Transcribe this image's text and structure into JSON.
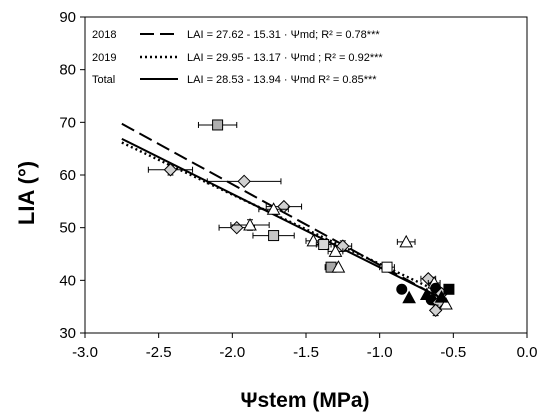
{
  "chart_data": {
    "type": "scatter",
    "title": "",
    "xlabel": "Ψstem (MPa)",
    "ylabel": "LIA (°)",
    "xlim": [
      -3.0,
      0.0
    ],
    "ylim": [
      30,
      90
    ],
    "xticks": [
      "-3.0",
      "-2.5",
      "-2.0",
      "-1.5",
      "-1.0",
      "-0.5",
      "0.0"
    ],
    "yticks": [
      "30",
      "40",
      "50",
      "60",
      "70",
      "80",
      "90"
    ],
    "grid": false,
    "legend_position": "top-left",
    "regressions": [
      {
        "name": "2018",
        "equation": "LAI = 27.62 - 15.31 · Ψmd; R² = 0.78***",
        "intercept": 27.62,
        "slope": -15.31,
        "x_range": [
          -2.75,
          -0.55
        ],
        "style": "dashed"
      },
      {
        "name": "2019",
        "equation": "LAI = 29.95 - 13.17 · Ψmd ; R² = 0.92***",
        "intercept": 29.95,
        "slope": -13.17,
        "x_range": [
          -2.75,
          -0.55
        ],
        "style": "dotted"
      },
      {
        "name": "Total",
        "equation": "LAI = 28.53 - 13.94 · Ψmd  R² = 0.85***",
        "intercept": 28.53,
        "slope": -13.94,
        "x_range": [
          -2.75,
          -0.55
        ],
        "style": "solid"
      }
    ],
    "points": [
      {
        "x": -2.1,
        "y": 69.5,
        "xerr": 0.13,
        "yerr": 0,
        "marker": "square",
        "fill": "#b0b0b0"
      },
      {
        "x": -2.42,
        "y": 61.0,
        "xerr": 0.15,
        "yerr": 1.0,
        "marker": "diamond",
        "fill": "#d0d0d0"
      },
      {
        "x": -1.92,
        "y": 58.8,
        "xerr": 0.25,
        "yerr": 0,
        "marker": "diamond",
        "fill": "#d0d0d0"
      },
      {
        "x": -1.65,
        "y": 54.0,
        "xerr": 0.12,
        "yerr": 0,
        "marker": "diamond",
        "fill": "#d0d0d0"
      },
      {
        "x": -1.72,
        "y": 53.5,
        "xerr": 0.1,
        "yerr": 0,
        "marker": "triangle",
        "fill": "#ffffff"
      },
      {
        "x": -1.97,
        "y": 50.0,
        "xerr": 0.12,
        "yerr": 0,
        "marker": "diamond",
        "fill": "#d0d0d0"
      },
      {
        "x": -1.88,
        "y": 50.5,
        "xerr": 0.13,
        "yerr": 1.0,
        "marker": "triangle",
        "fill": "#ffffff"
      },
      {
        "x": -1.72,
        "y": 48.5,
        "xerr": 0.14,
        "yerr": 0,
        "marker": "square",
        "fill": "#c8c8c8"
      },
      {
        "x": -1.45,
        "y": 47.5,
        "xerr": 0.05,
        "yerr": 0,
        "marker": "triangle",
        "fill": "#ffffff"
      },
      {
        "x": -1.38,
        "y": 46.8,
        "xerr": 0.05,
        "yerr": 0,
        "marker": "square",
        "fill": "#d8d8d8"
      },
      {
        "x": -1.25,
        "y": 46.5,
        "xerr": 0.06,
        "yerr": 1.0,
        "marker": "diamond",
        "fill": "#d0d0d0"
      },
      {
        "x": -1.3,
        "y": 45.5,
        "xerr": 0.05,
        "yerr": 0,
        "marker": "triangle",
        "fill": "#ffffff"
      },
      {
        "x": -1.33,
        "y": 42.5,
        "xerr": 0.04,
        "yerr": 0,
        "marker": "square",
        "fill": "#a8a8a8"
      },
      {
        "x": -1.28,
        "y": 42.5,
        "xerr": 0,
        "yerr": 0,
        "marker": "triangle",
        "fill": "#ffffff"
      },
      {
        "x": -0.95,
        "y": 42.5,
        "xerr": 0.05,
        "yerr": 0,
        "marker": "square",
        "fill": "#ffffff"
      },
      {
        "x": -0.82,
        "y": 47.3,
        "xerr": 0.06,
        "yerr": 0,
        "marker": "triangle",
        "fill": "#ffffff"
      },
      {
        "x": -0.85,
        "y": 38.3,
        "xerr": 0,
        "yerr": 0,
        "marker": "circle",
        "fill": "#000000"
      },
      {
        "x": -0.8,
        "y": 36.7,
        "xerr": 0,
        "yerr": 0,
        "marker": "triangle",
        "fill": "#000000"
      },
      {
        "x": -0.67,
        "y": 40.3,
        "xerr": 0.05,
        "yerr": 0,
        "marker": "diamond",
        "fill": "#d0d0d0"
      },
      {
        "x": -0.63,
        "y": 39.5,
        "xerr": 0.04,
        "yerr": 0,
        "marker": "triangle",
        "fill": "#ffffff"
      },
      {
        "x": -0.62,
        "y": 38.5,
        "xerr": 0,
        "yerr": 0,
        "marker": "circle",
        "fill": "#000000"
      },
      {
        "x": -0.58,
        "y": 37.5,
        "xerr": 0,
        "yerr": 0,
        "marker": "diamond",
        "fill": "#d0d0d0"
      },
      {
        "x": -0.68,
        "y": 37.3,
        "xerr": 0,
        "yerr": 0,
        "marker": "triangle",
        "fill": "#000000"
      },
      {
        "x": -0.53,
        "y": 38.3,
        "xerr": 0,
        "yerr": 0,
        "marker": "square",
        "fill": "#000000"
      },
      {
        "x": -0.65,
        "y": 36.3,
        "xerr": 0,
        "yerr": 0,
        "marker": "circle",
        "fill": "#000000"
      },
      {
        "x": -0.6,
        "y": 35.8,
        "xerr": 0.04,
        "yerr": 0,
        "marker": "diamond",
        "fill": "#d0d0d0"
      },
      {
        "x": -0.62,
        "y": 34.3,
        "xerr": 0,
        "yerr": 1.0,
        "marker": "diamond",
        "fill": "#d0d0d0"
      },
      {
        "x": -0.55,
        "y": 35.5,
        "xerr": 0,
        "yerr": 0,
        "marker": "triangle",
        "fill": "#ffffff"
      },
      {
        "x": -0.58,
        "y": 36.8,
        "xerr": 0,
        "yerr": 0,
        "marker": "triangle",
        "fill": "#000000"
      }
    ],
    "colors": {
      "axis": "#000000",
      "line": "#000000"
    }
  }
}
